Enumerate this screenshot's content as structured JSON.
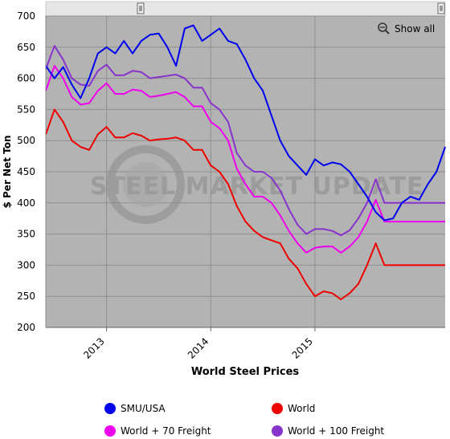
{
  "chart_data": {
    "type": "line",
    "title": "",
    "xlabel": "World Steel Prices",
    "ylabel": "$ Per Net Ton",
    "ylim": [
      200,
      700
    ],
    "yticks": [
      200,
      250,
      300,
      350,
      400,
      450,
      500,
      550,
      600,
      650,
      700
    ],
    "xlim": [
      "2012-06",
      "2016-04"
    ],
    "xticks": [
      {
        "label": "2013",
        "x": "2013-01"
      },
      {
        "label": "2014",
        "x": "2014-01"
      },
      {
        "label": "2015",
        "x": "2015-01"
      }
    ],
    "grid": true,
    "legend_position": "bottom",
    "series": [
      {
        "name": "SMU/USA",
        "color": "#0000ee",
        "x": [
          "2012-06",
          "2012-07",
          "2012-08",
          "2012-09",
          "2012-10",
          "2012-11",
          "2012-12",
          "2013-01",
          "2013-02",
          "2013-03",
          "2013-04",
          "2013-05",
          "2013-06",
          "2013-07",
          "2013-08",
          "2013-09",
          "2013-10",
          "2013-11",
          "2013-12",
          "2014-01",
          "2014-02",
          "2014-03",
          "2014-04",
          "2014-05",
          "2014-06",
          "2014-07",
          "2014-08",
          "2014-09",
          "2014-10",
          "2014-11",
          "2014-12",
          "2015-01",
          "2015-02",
          "2015-03",
          "2015-04",
          "2015-05",
          "2015-06",
          "2015-07",
          "2015-08",
          "2015-09",
          "2015-10",
          "2015-11",
          "2015-12",
          "2016-01",
          "2016-02",
          "2016-03",
          "2016-04"
        ],
        "values": [
          620,
          600,
          618,
          590,
          568,
          600,
          640,
          650,
          640,
          660,
          640,
          660,
          670,
          672,
          650,
          620,
          680,
          685,
          660,
          670,
          680,
          660,
          655,
          630,
          600,
          580,
          540,
          500,
          475,
          460,
          445,
          470,
          460,
          465,
          462,
          450,
          430,
          410,
          385,
          372,
          375,
          400,
          410,
          405,
          430,
          450,
          490
        ]
      },
      {
        "name": "World",
        "color": "#ee0000",
        "x": [
          "2012-06",
          "2012-07",
          "2012-08",
          "2012-09",
          "2012-10",
          "2012-11",
          "2012-12",
          "2013-01",
          "2013-02",
          "2013-03",
          "2013-04",
          "2013-05",
          "2013-06",
          "2013-07",
          "2013-08",
          "2013-09",
          "2013-10",
          "2013-11",
          "2013-12",
          "2014-01",
          "2014-02",
          "2014-03",
          "2014-04",
          "2014-05",
          "2014-06",
          "2014-07",
          "2014-08",
          "2014-09",
          "2014-10",
          "2014-11",
          "2014-12",
          "2015-01",
          "2015-02",
          "2015-03",
          "2015-04",
          "2015-05",
          "2015-06",
          "2015-07",
          "2015-08",
          "2015-09",
          "2015-10",
          "2015-11",
          "2015-12",
          "2016-01",
          "2016-02",
          "2016-03",
          "2016-04"
        ],
        "values": [
          510,
          550,
          530,
          500,
          490,
          485,
          510,
          522,
          505,
          505,
          512,
          508,
          500,
          502,
          503,
          505,
          500,
          485,
          485,
          460,
          450,
          430,
          395,
          370,
          355,
          345,
          340,
          335,
          310,
          295,
          270,
          250,
          258,
          255,
          245,
          255,
          270,
          300,
          335,
          300,
          300,
          300,
          300,
          300,
          300,
          300,
          300
        ]
      },
      {
        "name": "World + 70 Freight",
        "color": "#ee00ee",
        "x": [
          "2012-06",
          "2012-07",
          "2012-08",
          "2012-09",
          "2012-10",
          "2012-11",
          "2012-12",
          "2013-01",
          "2013-02",
          "2013-03",
          "2013-04",
          "2013-05",
          "2013-06",
          "2013-07",
          "2013-08",
          "2013-09",
          "2013-10",
          "2013-11",
          "2013-12",
          "2014-01",
          "2014-02",
          "2014-03",
          "2014-04",
          "2014-05",
          "2014-06",
          "2014-07",
          "2014-08",
          "2014-09",
          "2014-10",
          "2014-11",
          "2014-12",
          "2015-01",
          "2015-02",
          "2015-03",
          "2015-04",
          "2015-05",
          "2015-06",
          "2015-07",
          "2015-08",
          "2015-09",
          "2015-10",
          "2015-11",
          "2015-12",
          "2016-01",
          "2016-02",
          "2016-03",
          "2016-04"
        ],
        "values": [
          580,
          620,
          600,
          570,
          558,
          560,
          580,
          592,
          575,
          575,
          582,
          580,
          570,
          572,
          575,
          578,
          570,
          555,
          555,
          530,
          520,
          500,
          455,
          430,
          410,
          410,
          400,
          380,
          355,
          335,
          320,
          328,
          330,
          330,
          320,
          330,
          345,
          370,
          405,
          370,
          370,
          370,
          370,
          370,
          370,
          370,
          370
        ]
      },
      {
        "name": "World + 100 Freight",
        "color": "#8833cc",
        "x": [
          "2012-06",
          "2012-07",
          "2012-08",
          "2012-09",
          "2012-10",
          "2012-11",
          "2012-12",
          "2013-01",
          "2013-02",
          "2013-03",
          "2013-04",
          "2013-05",
          "2013-06",
          "2013-07",
          "2013-08",
          "2013-09",
          "2013-10",
          "2013-11",
          "2013-12",
          "2014-01",
          "2014-02",
          "2014-03",
          "2014-04",
          "2014-05",
          "2014-06",
          "2014-07",
          "2014-08",
          "2014-09",
          "2014-10",
          "2014-11",
          "2014-12",
          "2015-01",
          "2015-02",
          "2015-03",
          "2015-04",
          "2015-05",
          "2015-06",
          "2015-07",
          "2015-08",
          "2015-09",
          "2015-10",
          "2015-11",
          "2015-12",
          "2016-01",
          "2016-02",
          "2016-03",
          "2016-04"
        ],
        "values": [
          615,
          652,
          630,
          600,
          590,
          588,
          612,
          622,
          605,
          605,
          612,
          610,
          600,
          602,
          604,
          606,
          600,
          585,
          585,
          560,
          550,
          530,
          480,
          460,
          450,
          450,
          440,
          420,
          390,
          365,
          350,
          358,
          358,
          355,
          348,
          356,
          375,
          400,
          438,
          400,
          400,
          400,
          400,
          400,
          400,
          400,
          400
        ]
      }
    ]
  },
  "ui": {
    "show_all_label": "Show all",
    "watermark_text": "STEEL MARKET UPDATE"
  }
}
